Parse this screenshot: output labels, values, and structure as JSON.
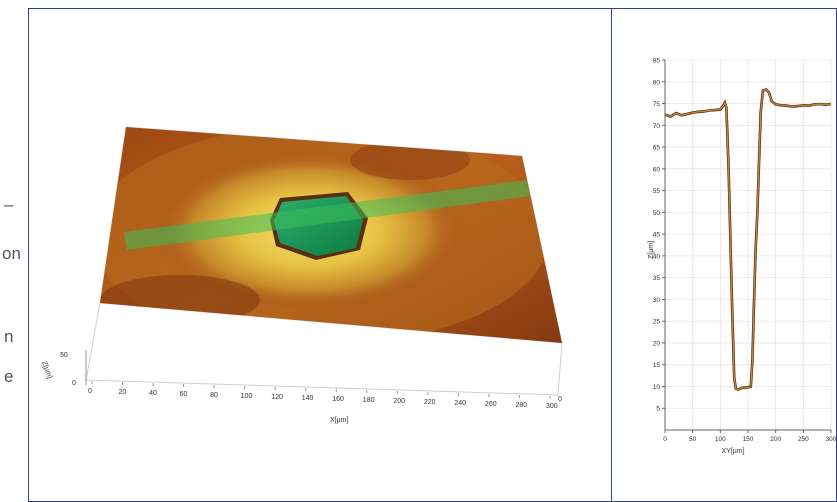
{
  "left_fragments": [
    "–",
    "on",
    "n",
    "e"
  ],
  "surface": {
    "x_axis_label": "X[µm]",
    "x_ticks": [
      "0",
      "20",
      "40",
      "60",
      "80",
      "100",
      "120",
      "140",
      "160",
      "180",
      "200",
      "220",
      "240",
      "260",
      "280",
      "300"
    ],
    "z_axis_label": "Z[µm]",
    "z_ticks": [
      "50",
      "0"
    ],
    "y_corner_tick": "0",
    "colors": {
      "surface_high": "#8a3a10",
      "surface_mid": "#c46a1a",
      "halo": "#e8c84a",
      "hole": "#1f9a5a",
      "profile_band": "#3bbf5a"
    }
  },
  "chart_data": {
    "type": "line",
    "xlabel": "XY[µm]",
    "ylabel": "Z[µm]",
    "xlim": [
      0,
      300
    ],
    "ylim": [
      0,
      85
    ],
    "x_ticks": [
      "0",
      "50",
      "100",
      "150",
      "200",
      "250",
      "300"
    ],
    "y_ticks": [
      "5",
      "10",
      "15",
      "20",
      "25",
      "30",
      "35",
      "40",
      "45",
      "50",
      "55",
      "60",
      "65",
      "70",
      "75",
      "80",
      "85"
    ],
    "grid": true,
    "series": [
      {
        "color": "#c8863a",
        "points": [
          [
            0,
            72.5
          ],
          [
            10,
            72.0
          ],
          [
            20,
            72.8
          ],
          [
            30,
            72.3
          ],
          [
            40,
            72.6
          ],
          [
            50,
            72.9
          ],
          [
            60,
            73.1
          ],
          [
            70,
            73.2
          ],
          [
            80,
            73.4
          ],
          [
            90,
            73.5
          ],
          [
            100,
            73.6
          ],
          [
            105,
            74.5
          ],
          [
            108,
            75.2
          ],
          [
            111,
            74.0
          ],
          [
            115,
            60.0
          ],
          [
            119,
            40.0
          ],
          [
            122,
            25.0
          ],
          [
            125,
            12.0
          ],
          [
            128,
            9.5
          ],
          [
            132,
            9.3
          ],
          [
            140,
            9.7
          ],
          [
            150,
            9.8
          ],
          [
            155,
            10.0
          ],
          [
            158,
            16.0
          ],
          [
            161,
            30.0
          ],
          [
            164,
            42.0
          ],
          [
            167,
            50.0
          ],
          [
            170,
            62.0
          ],
          [
            173,
            73.0
          ],
          [
            177,
            78.0
          ],
          [
            183,
            78.2
          ],
          [
            188,
            77.5
          ],
          [
            193,
            75.5
          ],
          [
            200,
            74.8
          ],
          [
            210,
            74.6
          ],
          [
            220,
            74.5
          ],
          [
            230,
            74.3
          ],
          [
            240,
            74.4
          ],
          [
            250,
            74.6
          ],
          [
            260,
            74.5
          ],
          [
            270,
            74.8
          ],
          [
            280,
            74.9
          ],
          [
            290,
            74.7
          ],
          [
            300,
            74.9
          ]
        ]
      }
    ]
  }
}
